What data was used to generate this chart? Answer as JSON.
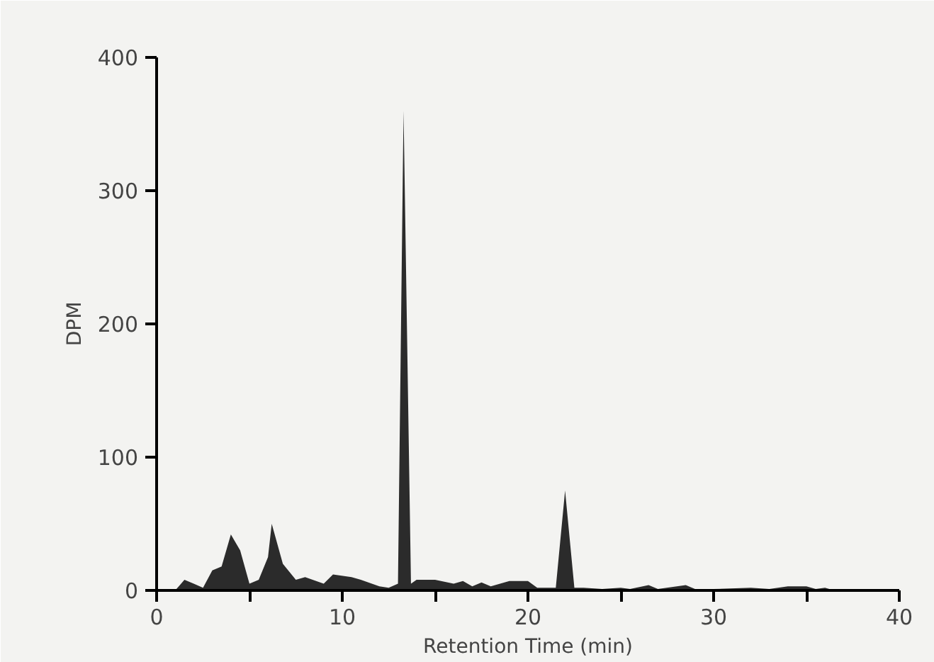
{
  "chart_data": {
    "type": "area",
    "xlabel": "Retention Time (min)",
    "ylabel": "DPM",
    "xlim": [
      0,
      40
    ],
    "ylim": [
      0,
      400
    ],
    "xticks": [
      0,
      {
        "value": 5,
        "label": null
      },
      10,
      {
        "value": 15,
        "label": null
      },
      20,
      {
        "value": 25,
        "label": null
      },
      30,
      {
        "value": 35,
        "label": null
      },
      40
    ],
    "yticks": [
      0,
      100,
      200,
      300,
      400
    ],
    "grid": false,
    "series": [
      {
        "color": "#2b2b2b",
        "x": [
          1,
          1.5,
          2,
          2.5,
          3,
          3.5,
          4,
          4.5,
          5,
          5.5,
          6,
          6.2,
          6.8,
          7.5,
          8,
          9,
          9.5,
          10.5,
          11,
          12,
          12.5,
          13,
          13.3,
          13.7,
          14,
          15,
          16,
          16.5,
          17,
          17.5,
          18,
          19,
          20,
          20.5,
          21.5,
          22,
          22.5,
          23,
          24,
          25,
          25.5,
          26.5,
          27,
          28.5,
          29,
          30,
          32,
          33,
          34,
          35,
          35.5,
          36,
          36.5
        ],
        "values": [
          0,
          8,
          5,
          2,
          15,
          18,
          42,
          30,
          5,
          8,
          25,
          50,
          20,
          8,
          10,
          5,
          12,
          10,
          8,
          3,
          2,
          5,
          360,
          5,
          8,
          8,
          5,
          7,
          3,
          6,
          3,
          7,
          7,
          2,
          2,
          75,
          2,
          2,
          1,
          2,
          1,
          4,
          1,
          4,
          1,
          1,
          2,
          1,
          3,
          3,
          1,
          2,
          0
        ]
      }
    ]
  }
}
